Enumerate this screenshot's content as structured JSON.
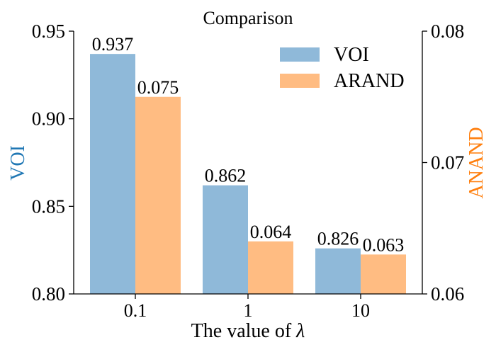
{
  "chart_data": {
    "type": "bar",
    "title": "Comparison",
    "xlabel_prefix": "The value of ",
    "xlabel_symbol": "λ",
    "categories": [
      "0.1",
      "1",
      "10"
    ],
    "series": [
      {
        "name": "VOI",
        "axis": "left",
        "color": "#8fb9d9",
        "values": [
          0.937,
          0.862,
          0.826
        ],
        "labels": [
          "0.937",
          "0.862",
          "0.826"
        ]
      },
      {
        "name": "ARAND",
        "axis": "right",
        "color": "#ffbc82",
        "values": [
          0.075,
          0.064,
          0.063
        ],
        "labels": [
          "0.075",
          "0.064",
          "0.063"
        ]
      }
    ],
    "ylabel_left": "VOI",
    "ylabel_left_color": "#1f77b4",
    "ylim_left": [
      0.8,
      0.95
    ],
    "yticks_left": [
      "0.80",
      "0.85",
      "0.90",
      "0.95"
    ],
    "ylabel_right": "ANAND",
    "ylabel_right_color": "#ff7f0e",
    "ylim_right": [
      0.06,
      0.08
    ],
    "yticks_right": [
      "0.06",
      "0.07",
      "0.08"
    ],
    "legend_position": "top-right",
    "grid": false
  }
}
